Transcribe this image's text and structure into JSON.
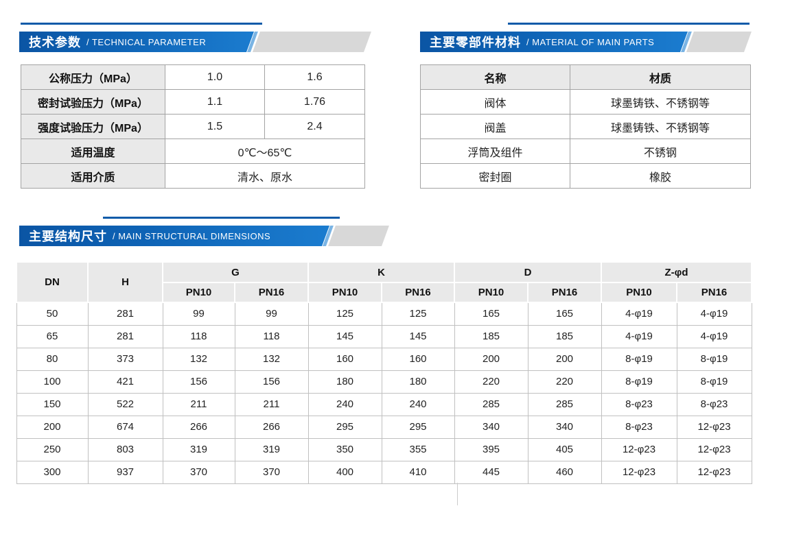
{
  "colors": {
    "header_blue_dark": "#0b55a4",
    "header_blue_light": "#1b7ccf",
    "header_slant_accent": "#7ab4e4",
    "header_gray_tail": "#d8d8d8",
    "accent_line": "#0d5ba9",
    "table_header_bg": "#e9e9e9",
    "table_border": "#a3a3a3",
    "text": "#222222"
  },
  "sections": {
    "technical": {
      "title_zh": "技术参数",
      "title_en": "/ TECHNICAL PARAMETER",
      "table": {
        "rows": [
          {
            "label": "公称压力（MPa）",
            "values": [
              "1.0",
              "1.6"
            ]
          },
          {
            "label": "密封试验压力（MPa）",
            "values": [
              "1.1",
              "1.76"
            ]
          },
          {
            "label": "强度试验压力（MPa）",
            "values": [
              "1.5",
              "2.4"
            ]
          },
          {
            "label": "适用温度",
            "values": [
              "0℃～65℃"
            ]
          },
          {
            "label": "适用介质",
            "values": [
              "清水、原水"
            ]
          }
        ]
      }
    },
    "materials": {
      "title_zh": "主要零部件材料",
      "title_en": "/ MATERIAL OF MAIN PARTS",
      "table": {
        "headers": [
          "名称",
          "材质"
        ],
        "rows": [
          [
            "阀体",
            "球墨铸铁、不锈钢等"
          ],
          [
            "阀盖",
            "球墨铸铁、不锈钢等"
          ],
          [
            "浮筒及组件",
            "不锈钢"
          ],
          [
            "密封圈",
            "橡胶"
          ]
        ]
      }
    },
    "dimensions": {
      "title_zh": "主要结构尺寸",
      "title_en": "/ MAIN STRUCTURAL DIMENSIONS",
      "table": {
        "col_groups": [
          {
            "label": "DN"
          },
          {
            "label": "H"
          },
          {
            "label": "G",
            "sub": [
              "PN10",
              "PN16"
            ]
          },
          {
            "label": "K",
            "sub": [
              "PN10",
              "PN16"
            ]
          },
          {
            "label": "D",
            "sub": [
              "PN10",
              "PN16"
            ]
          },
          {
            "label": "Z-φd",
            "sub": [
              "PN10",
              "PN16"
            ]
          }
        ],
        "rows": [
          [
            "50",
            "281",
            "99",
            "99",
            "125",
            "125",
            "165",
            "165",
            "4-φ19",
            "4-φ19"
          ],
          [
            "65",
            "281",
            "118",
            "118",
            "145",
            "145",
            "185",
            "185",
            "4-φ19",
            "4-φ19"
          ],
          [
            "80",
            "373",
            "132",
            "132",
            "160",
            "160",
            "200",
            "200",
            "8-φ19",
            "8-φ19"
          ],
          [
            "100",
            "421",
            "156",
            "156",
            "180",
            "180",
            "220",
            "220",
            "8-φ19",
            "8-φ19"
          ],
          [
            "150",
            "522",
            "211",
            "211",
            "240",
            "240",
            "285",
            "285",
            "8-φ23",
            "8-φ23"
          ],
          [
            "200",
            "674",
            "266",
            "266",
            "295",
            "295",
            "340",
            "340",
            "8-φ23",
            "12-φ23"
          ],
          [
            "250",
            "803",
            "319",
            "319",
            "350",
            "355",
            "395",
            "405",
            "12-φ23",
            "12-φ23"
          ],
          [
            "300",
            "937",
            "370",
            "370",
            "400",
            "410",
            "445",
            "460",
            "12-φ23",
            "12-φ23"
          ]
        ]
      }
    }
  }
}
